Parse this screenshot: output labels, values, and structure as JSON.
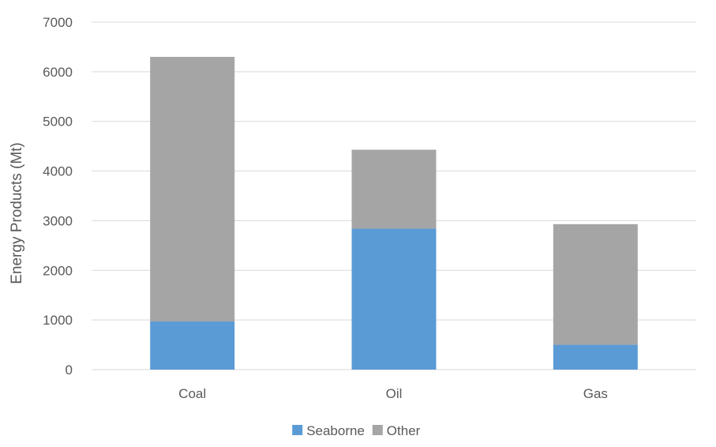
{
  "chart_data": {
    "type": "bar",
    "stacked": true,
    "categories": [
      "Coal",
      "Oil",
      "Gas"
    ],
    "series": [
      {
        "name": "Seaborne",
        "values": [
          970,
          2840,
          500
        ],
        "color": "#5b9bd5"
      },
      {
        "name": "Other",
        "values": [
          5330,
          1590,
          2430
        ],
        "color": "#a5a5a5"
      }
    ],
    "title": "",
    "xlabel": "",
    "ylabel": "Energy Products (Mt)",
    "ylim": [
      0,
      7000
    ],
    "yticks": [
      0,
      1000,
      2000,
      3000,
      4000,
      5000,
      6000,
      7000
    ],
    "grid": true,
    "legend": "bottom-center"
  }
}
